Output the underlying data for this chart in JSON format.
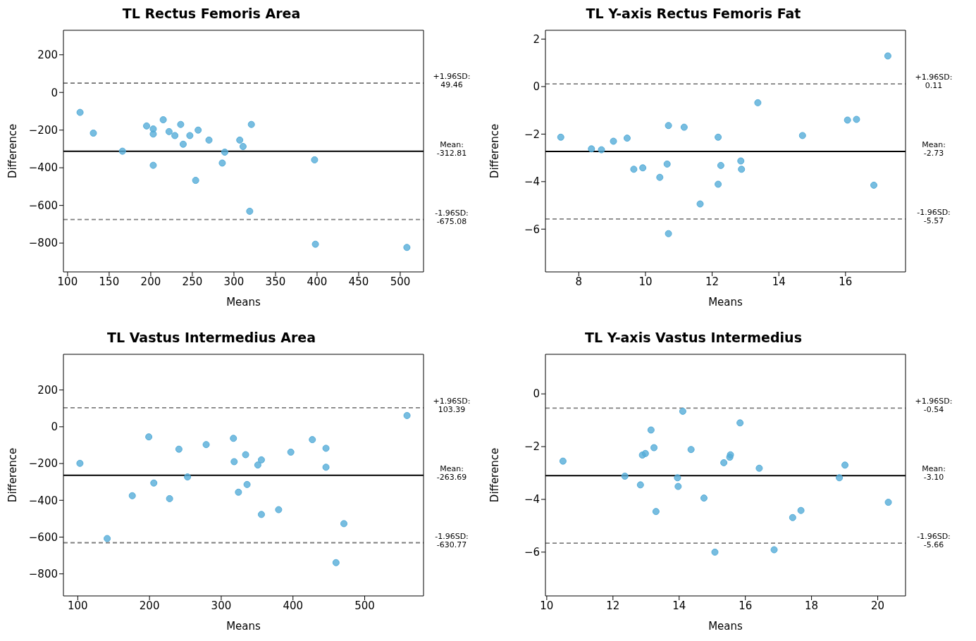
{
  "chart_data": [
    {
      "type": "scatter",
      "title": "TL Rectus Femoris Area",
      "xlabel": "Means",
      "ylabel": "Difference",
      "color": "#55acd8",
      "marker": "circle",
      "grid": false,
      "x": [
        115,
        131,
        166,
        195,
        203,
        203,
        203,
        215,
        222,
        229,
        236,
        239,
        247,
        257,
        254,
        270,
        286,
        289,
        307,
        311,
        321,
        319,
        397,
        398,
        508
      ],
      "values": [
        -106,
        -216,
        -312,
        -178,
        -194,
        -221,
        -387,
        -145,
        -208,
        -229,
        -170,
        -275,
        -229,
        -200,
        -467,
        -253,
        -375,
        -317,
        -253,
        -287,
        -170,
        -631,
        -358,
        -806,
        -823
      ],
      "xlim": [
        95,
        528
      ],
      "ylim": [
        -953,
        330
      ],
      "xticks": [
        100,
        150,
        200,
        250,
        300,
        350,
        400,
        450,
        500
      ],
      "yticks": [
        {
          "value": -800,
          "label": "−800"
        },
        {
          "value": -600,
          "label": "−600"
        },
        {
          "value": -400,
          "label": "−400"
        },
        {
          "value": -200,
          "label": "−200"
        },
        0,
        200
      ],
      "ref_lines": [
        {
          "axis": "y",
          "value": 49.46,
          "label": "+1.96SD:\n49.46",
          "color": "#808080",
          "line_style": "dashed"
        },
        {
          "axis": "y",
          "value": -312.81,
          "label": "Mean:\n-312.81",
          "color": "#000000",
          "line_style": "solid"
        },
        {
          "axis": "y",
          "value": -675.08,
          "label": "-1.96SD:\n-675.08",
          "color": "#808080",
          "line_style": "dashed"
        }
      ]
    },
    {
      "type": "scatter",
      "title": "TL Y-axis Rectus Femoris Fat",
      "xlabel": "Means",
      "ylabel": "Difference",
      "color": "#55acd8",
      "marker": "circle",
      "grid": false,
      "x": [
        17.27,
        13.37,
        16.06,
        16.33,
        14.71,
        7.46,
        8.38,
        8.68,
        9.04,
        9.45,
        10.69,
        11.16,
        12.18,
        10.65,
        9.65,
        9.92,
        10.43,
        12.26,
        12.86,
        12.88,
        12.18,
        11.64,
        10.69,
        16.85
      ],
      "values": [
        1.29,
        -0.68,
        -1.41,
        -1.38,
        -2.06,
        -2.13,
        -2.62,
        -2.66,
        -2.3,
        -2.17,
        -1.64,
        -1.71,
        -2.13,
        -3.26,
        -3.48,
        -3.42,
        -3.82,
        -3.32,
        -3.13,
        -3.48,
        -4.11,
        -4.94,
        -6.19,
        -4.15
      ],
      "xlim": [
        7,
        17.8
      ],
      "ylim": [
        -7.8,
        2.37
      ],
      "xticks": [
        8,
        10,
        12,
        14,
        16
      ],
      "yticks": [
        {
          "value": -6,
          "label": "−6"
        },
        {
          "value": -4,
          "label": "−4"
        },
        {
          "value": -2,
          "label": "−2"
        },
        0,
        2
      ],
      "ref_lines": [
        {
          "axis": "y",
          "value": 0.11,
          "label": "+1.96SD:\n0.11",
          "color": "#808080",
          "line_style": "dashed"
        },
        {
          "axis": "y",
          "value": -2.73,
          "label": "Mean:\n-2.73",
          "color": "#000000",
          "line_style": "solid"
        },
        {
          "axis": "y",
          "value": -5.57,
          "label": "-1.96SD:\n-5.57",
          "color": "#808080",
          "line_style": "dashed"
        }
      ]
    },
    {
      "type": "scatter",
      "title": "TL Vastus Intermedius Area",
      "xlabel": "Means",
      "ylabel": "Difference",
      "color": "#55acd8",
      "marker": "circle",
      "grid": false,
      "x": [
        103,
        141,
        176,
        199,
        206,
        228,
        241,
        253,
        279,
        317,
        318,
        324,
        334,
        336,
        351,
        356,
        356,
        380,
        397,
        427,
        446,
        446,
        471,
        460,
        559
      ],
      "values": [
        -199,
        -608,
        -375,
        -55,
        -306,
        -391,
        -122,
        -273,
        -97,
        -63,
        -190,
        -356,
        -152,
        -314,
        -208,
        -180,
        -477,
        -451,
        -138,
        -70,
        -117,
        -220,
        -527,
        -739,
        61
      ],
      "xlim": [
        80,
        582
      ],
      "ylim": [
        -920,
        394
      ],
      "xticks": [
        100,
        200,
        300,
        400,
        500
      ],
      "yticks": [
        {
          "value": -800,
          "label": "−800"
        },
        {
          "value": -600,
          "label": "−600"
        },
        {
          "value": -400,
          "label": "−400"
        },
        {
          "value": -200,
          "label": "−200"
        },
        0,
        200
      ],
      "ref_lines": [
        {
          "axis": "y",
          "value": 103.39,
          "label": "+1.96SD:\n103.39",
          "color": "#808080",
          "line_style": "dashed"
        },
        {
          "axis": "y",
          "value": -263.69,
          "label": "Mean:\n-263.69",
          "color": "#000000",
          "line_style": "solid"
        },
        {
          "axis": "y",
          "value": -630.77,
          "label": "-1.96SD:\n-630.77",
          "color": "#808080",
          "line_style": "dashed"
        }
      ]
    },
    {
      "type": "scatter",
      "title": "TL Y-axis Vastus Intermedius",
      "xlabel": "Means",
      "ylabel": "Difference",
      "color": "#55acd8",
      "marker": "circle",
      "grid": false,
      "x": [
        10.49,
        12.36,
        12.83,
        12.89,
        12.98,
        13.15,
        13.24,
        13.3,
        13.95,
        13.97,
        14.11,
        14.36,
        14.75,
        15.08,
        15.35,
        15.53,
        15.55,
        15.84,
        16.42,
        16.87,
        17.43,
        17.68,
        18.84,
        19.01,
        20.32
      ],
      "values": [
        -2.55,
        -3.12,
        -3.45,
        -2.32,
        -2.26,
        -1.37,
        -2.04,
        -4.46,
        -3.18,
        -3.51,
        -0.66,
        -2.11,
        -3.95,
        -6.0,
        -2.61,
        -2.4,
        -2.31,
        -1.1,
        -2.82,
        -5.91,
        -4.69,
        -4.42,
        -3.18,
        -2.7,
        -4.11
      ],
      "xlim": [
        9.96,
        20.84
      ],
      "ylim": [
        -7.66,
        1.5
      ],
      "xticks": [
        10,
        12,
        14,
        16,
        18,
        20
      ],
      "yticks": [
        {
          "value": -6,
          "label": "−6"
        },
        {
          "value": -4,
          "label": "−4"
        },
        {
          "value": -2,
          "label": "−2"
        },
        0
      ],
      "ref_lines": [
        {
          "axis": "y",
          "value": -0.54,
          "label": "+1.96SD:\n-0.54",
          "color": "#808080",
          "line_style": "dashed"
        },
        {
          "axis": "y",
          "value": -3.1,
          "label": "Mean:\n-3.10",
          "color": "#000000",
          "line_style": "solid"
        },
        {
          "axis": "y",
          "value": -5.66,
          "label": "-1.96SD:\n-5.66",
          "color": "#808080",
          "line_style": "dashed"
        }
      ]
    }
  ]
}
